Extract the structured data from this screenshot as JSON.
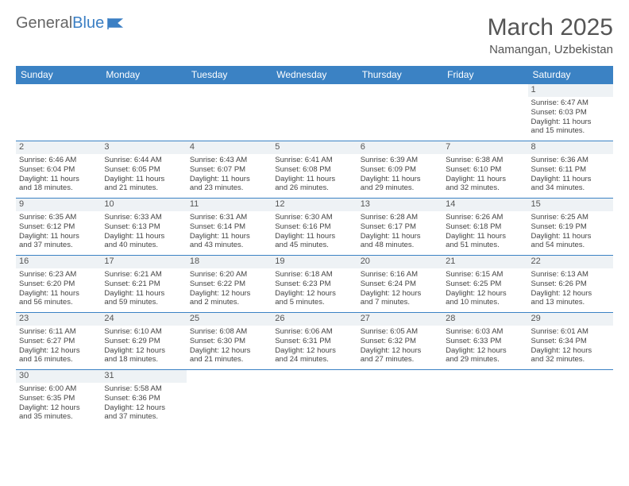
{
  "logo": {
    "text1": "General",
    "text2": "Blue",
    "color1": "#666666",
    "color2": "#3b7fc4"
  },
  "title": "March 2025",
  "location": "Namangan, Uzbekistan",
  "header_bg": "#3b82c4",
  "header_text_color": "#ffffff",
  "border_color": "#3b82c4",
  "daynum_bg": "#eef2f5",
  "weekdays": [
    "Sunday",
    "Monday",
    "Tuesday",
    "Wednesday",
    "Thursday",
    "Friday",
    "Saturday"
  ],
  "weeks": [
    [
      null,
      null,
      null,
      null,
      null,
      null,
      {
        "day": "1",
        "sunrise": "Sunrise: 6:47 AM",
        "sunset": "Sunset: 6:03 PM",
        "daylight1": "Daylight: 11 hours",
        "daylight2": "and 15 minutes."
      }
    ],
    [
      {
        "day": "2",
        "sunrise": "Sunrise: 6:46 AM",
        "sunset": "Sunset: 6:04 PM",
        "daylight1": "Daylight: 11 hours",
        "daylight2": "and 18 minutes."
      },
      {
        "day": "3",
        "sunrise": "Sunrise: 6:44 AM",
        "sunset": "Sunset: 6:05 PM",
        "daylight1": "Daylight: 11 hours",
        "daylight2": "and 21 minutes."
      },
      {
        "day": "4",
        "sunrise": "Sunrise: 6:43 AM",
        "sunset": "Sunset: 6:07 PM",
        "daylight1": "Daylight: 11 hours",
        "daylight2": "and 23 minutes."
      },
      {
        "day": "5",
        "sunrise": "Sunrise: 6:41 AM",
        "sunset": "Sunset: 6:08 PM",
        "daylight1": "Daylight: 11 hours",
        "daylight2": "and 26 minutes."
      },
      {
        "day": "6",
        "sunrise": "Sunrise: 6:39 AM",
        "sunset": "Sunset: 6:09 PM",
        "daylight1": "Daylight: 11 hours",
        "daylight2": "and 29 minutes."
      },
      {
        "day": "7",
        "sunrise": "Sunrise: 6:38 AM",
        "sunset": "Sunset: 6:10 PM",
        "daylight1": "Daylight: 11 hours",
        "daylight2": "and 32 minutes."
      },
      {
        "day": "8",
        "sunrise": "Sunrise: 6:36 AM",
        "sunset": "Sunset: 6:11 PM",
        "daylight1": "Daylight: 11 hours",
        "daylight2": "and 34 minutes."
      }
    ],
    [
      {
        "day": "9",
        "sunrise": "Sunrise: 6:35 AM",
        "sunset": "Sunset: 6:12 PM",
        "daylight1": "Daylight: 11 hours",
        "daylight2": "and 37 minutes."
      },
      {
        "day": "10",
        "sunrise": "Sunrise: 6:33 AM",
        "sunset": "Sunset: 6:13 PM",
        "daylight1": "Daylight: 11 hours",
        "daylight2": "and 40 minutes."
      },
      {
        "day": "11",
        "sunrise": "Sunrise: 6:31 AM",
        "sunset": "Sunset: 6:14 PM",
        "daylight1": "Daylight: 11 hours",
        "daylight2": "and 43 minutes."
      },
      {
        "day": "12",
        "sunrise": "Sunrise: 6:30 AM",
        "sunset": "Sunset: 6:16 PM",
        "daylight1": "Daylight: 11 hours",
        "daylight2": "and 45 minutes."
      },
      {
        "day": "13",
        "sunrise": "Sunrise: 6:28 AM",
        "sunset": "Sunset: 6:17 PM",
        "daylight1": "Daylight: 11 hours",
        "daylight2": "and 48 minutes."
      },
      {
        "day": "14",
        "sunrise": "Sunrise: 6:26 AM",
        "sunset": "Sunset: 6:18 PM",
        "daylight1": "Daylight: 11 hours",
        "daylight2": "and 51 minutes."
      },
      {
        "day": "15",
        "sunrise": "Sunrise: 6:25 AM",
        "sunset": "Sunset: 6:19 PM",
        "daylight1": "Daylight: 11 hours",
        "daylight2": "and 54 minutes."
      }
    ],
    [
      {
        "day": "16",
        "sunrise": "Sunrise: 6:23 AM",
        "sunset": "Sunset: 6:20 PM",
        "daylight1": "Daylight: 11 hours",
        "daylight2": "and 56 minutes."
      },
      {
        "day": "17",
        "sunrise": "Sunrise: 6:21 AM",
        "sunset": "Sunset: 6:21 PM",
        "daylight1": "Daylight: 11 hours",
        "daylight2": "and 59 minutes."
      },
      {
        "day": "18",
        "sunrise": "Sunrise: 6:20 AM",
        "sunset": "Sunset: 6:22 PM",
        "daylight1": "Daylight: 12 hours",
        "daylight2": "and 2 minutes."
      },
      {
        "day": "19",
        "sunrise": "Sunrise: 6:18 AM",
        "sunset": "Sunset: 6:23 PM",
        "daylight1": "Daylight: 12 hours",
        "daylight2": "and 5 minutes."
      },
      {
        "day": "20",
        "sunrise": "Sunrise: 6:16 AM",
        "sunset": "Sunset: 6:24 PM",
        "daylight1": "Daylight: 12 hours",
        "daylight2": "and 7 minutes."
      },
      {
        "day": "21",
        "sunrise": "Sunrise: 6:15 AM",
        "sunset": "Sunset: 6:25 PM",
        "daylight1": "Daylight: 12 hours",
        "daylight2": "and 10 minutes."
      },
      {
        "day": "22",
        "sunrise": "Sunrise: 6:13 AM",
        "sunset": "Sunset: 6:26 PM",
        "daylight1": "Daylight: 12 hours",
        "daylight2": "and 13 minutes."
      }
    ],
    [
      {
        "day": "23",
        "sunrise": "Sunrise: 6:11 AM",
        "sunset": "Sunset: 6:27 PM",
        "daylight1": "Daylight: 12 hours",
        "daylight2": "and 16 minutes."
      },
      {
        "day": "24",
        "sunrise": "Sunrise: 6:10 AM",
        "sunset": "Sunset: 6:29 PM",
        "daylight1": "Daylight: 12 hours",
        "daylight2": "and 18 minutes."
      },
      {
        "day": "25",
        "sunrise": "Sunrise: 6:08 AM",
        "sunset": "Sunset: 6:30 PM",
        "daylight1": "Daylight: 12 hours",
        "daylight2": "and 21 minutes."
      },
      {
        "day": "26",
        "sunrise": "Sunrise: 6:06 AM",
        "sunset": "Sunset: 6:31 PM",
        "daylight1": "Daylight: 12 hours",
        "daylight2": "and 24 minutes."
      },
      {
        "day": "27",
        "sunrise": "Sunrise: 6:05 AM",
        "sunset": "Sunset: 6:32 PM",
        "daylight1": "Daylight: 12 hours",
        "daylight2": "and 27 minutes."
      },
      {
        "day": "28",
        "sunrise": "Sunrise: 6:03 AM",
        "sunset": "Sunset: 6:33 PM",
        "daylight1": "Daylight: 12 hours",
        "daylight2": "and 29 minutes."
      },
      {
        "day": "29",
        "sunrise": "Sunrise: 6:01 AM",
        "sunset": "Sunset: 6:34 PM",
        "daylight1": "Daylight: 12 hours",
        "daylight2": "and 32 minutes."
      }
    ],
    [
      {
        "day": "30",
        "sunrise": "Sunrise: 6:00 AM",
        "sunset": "Sunset: 6:35 PM",
        "daylight1": "Daylight: 12 hours",
        "daylight2": "and 35 minutes."
      },
      {
        "day": "31",
        "sunrise": "Sunrise: 5:58 AM",
        "sunset": "Sunset: 6:36 PM",
        "daylight1": "Daylight: 12 hours",
        "daylight2": "and 37 minutes."
      },
      null,
      null,
      null,
      null,
      null
    ]
  ]
}
